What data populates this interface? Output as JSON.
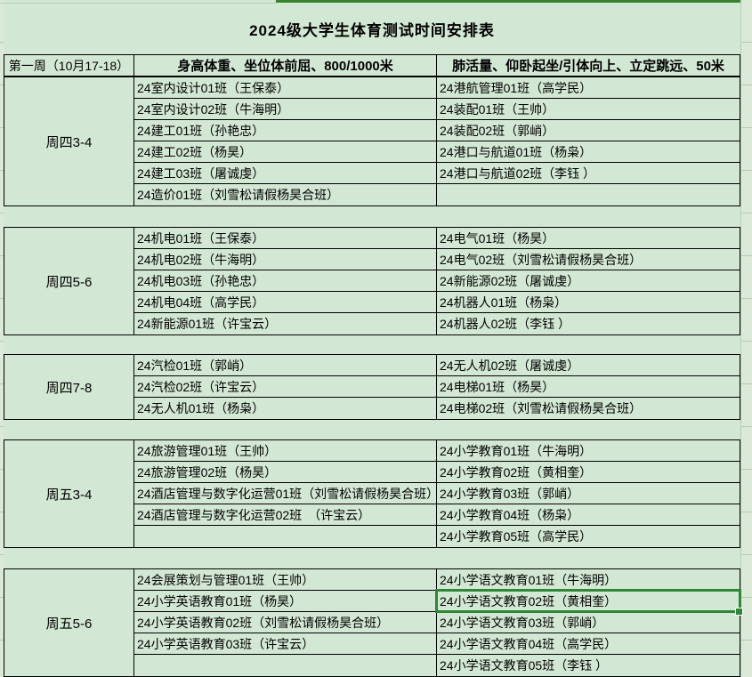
{
  "title": "2024级大学生体育测试时间安排表",
  "header": {
    "week": "第一周（10月17-18）",
    "col1": "身高体重、坐位体前屈、800/1000米",
    "col2": "肺活量、仰卧起坐/引体向上、立定跳远、50米"
  },
  "blocks": [
    {
      "label": "周四3-4",
      "rows": [
        [
          "24室内设计01班（王保泰）",
          "24港航管理01班（高学民）"
        ],
        [
          "24室内设计02班（牛海明）",
          "24装配01班（王帅）"
        ],
        [
          "24建工01班（孙艳忠）",
          "24装配02班（郭峭）"
        ],
        [
          "24建工02班（杨昊）",
          "24港口与航道01班（杨枭）"
        ],
        [
          "24建工03班（屠诚虔）",
          "24港口与航道02班（李钰 ）"
        ],
        [
          "24造价01班（刘雪松请假杨昊合班）",
          ""
        ]
      ]
    },
    {
      "label": "周四5-6",
      "rows": [
        [
          "24机电01班（王保泰）",
          "24电气01班（杨昊）"
        ],
        [
          "24机电02班（牛海明）",
          "24电气02班（刘雪松请假杨昊合班）"
        ],
        [
          "24机电03班（孙艳忠）",
          "24新能源02班（屠诚虔）"
        ],
        [
          "24机电04班（高学民）",
          "24机器人01班（杨枭）"
        ],
        [
          "24新能源01班（许宝云）",
          "24机器人02班（李钰 ）"
        ]
      ]
    },
    {
      "label": "周四7-8",
      "rows": [
        [
          "24汽检01班（郭峭）",
          "24无人机02班（屠诚虔）"
        ],
        [
          "24汽检02班（许宝云）",
          "24电梯01班（杨昊）"
        ],
        [
          "24无人机01班（杨枭）",
          "24电梯02班（刘雪松请假杨昊合班）"
        ]
      ]
    },
    {
      "label": "周五3-4",
      "rows": [
        [
          "24旅游管理01班（王帅）",
          "24小学教育01班（牛海明）"
        ],
        [
          "24旅游管理02班（杨昊）",
          "24小学教育02班（黄相奎）"
        ],
        [
          "24酒店管理与数字化运营01班（刘雪松请假杨昊合班）",
          "24小学教育03班（郭峭）"
        ],
        [
          "24酒店管理与数字化运营02班　（许宝云）",
          "24小学教育04班（杨枭）"
        ],
        [
          "",
          "24小学教育05班（高学民）"
        ]
      ]
    },
    {
      "label": "周五5-6",
      "rows": [
        [
          "24会展策划与管理01班（王帅）",
          "24小学语文教育01班（牛海明）"
        ],
        [
          "24小学英语教育01班（杨昊）",
          "24小学语文教育02班（黄相奎）"
        ],
        [
          "24小学英语教育02班（刘雪松请假杨昊合班）",
          "24小学语文教育03班（郭峭）"
        ],
        [
          "24小学英语教育03班（许宝云）",
          "24小学语文教育04班（高学民）"
        ],
        [
          "",
          "24小学语文教育05班（李钰 ）"
        ]
      ]
    }
  ],
  "selection": {
    "block_index": 4,
    "row_index": 1,
    "col_index": 1,
    "selected_text": "24小学语文教育02班（黄相奎）"
  },
  "colors": {
    "cell_bg": "#d3e8d4",
    "outside_bg": "#dbe9d8",
    "gridline": "#b7cbb7",
    "table_border": "#000000",
    "selection_green": "#2f8735",
    "top_accent_green": "#37822e"
  }
}
